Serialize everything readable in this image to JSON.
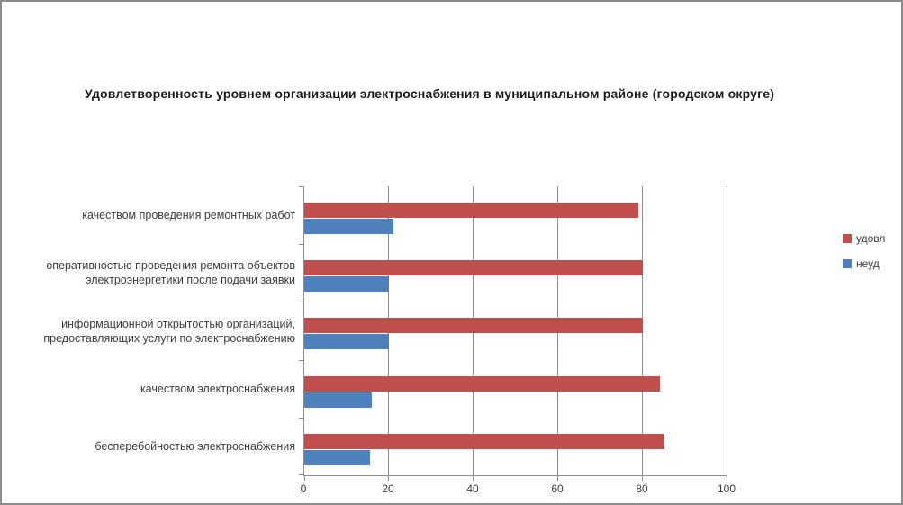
{
  "chart_data": {
    "type": "bar",
    "orientation": "horizontal",
    "title": "Удовлетворенность уровнем организации электроснабжения в муниципальном районе (городском округе)",
    "categories": [
      "качеством проведения ремонтных работ",
      "оперативностью проведения ремонта объектов электроэнергетики после подачи заявки",
      "информационной открытостью организаций, предоставляющих услуги по электроснабжению",
      "качеством электроснабжения",
      "бесперебойностью электроснабжения"
    ],
    "series": [
      {
        "name": "удовл",
        "color": "#c0504d",
        "values": [
          79,
          80,
          80,
          84,
          85
        ]
      },
      {
        "name": "неуд",
        "color": "#4f81bd",
        "values": [
          21,
          20,
          20,
          16,
          15.5
        ]
      }
    ],
    "xlim": [
      0,
      100
    ],
    "xticks": [
      0,
      20,
      40,
      60,
      80,
      100
    ],
    "xlabel": "",
    "ylabel": "",
    "grid": true,
    "legend_position": "right"
  }
}
